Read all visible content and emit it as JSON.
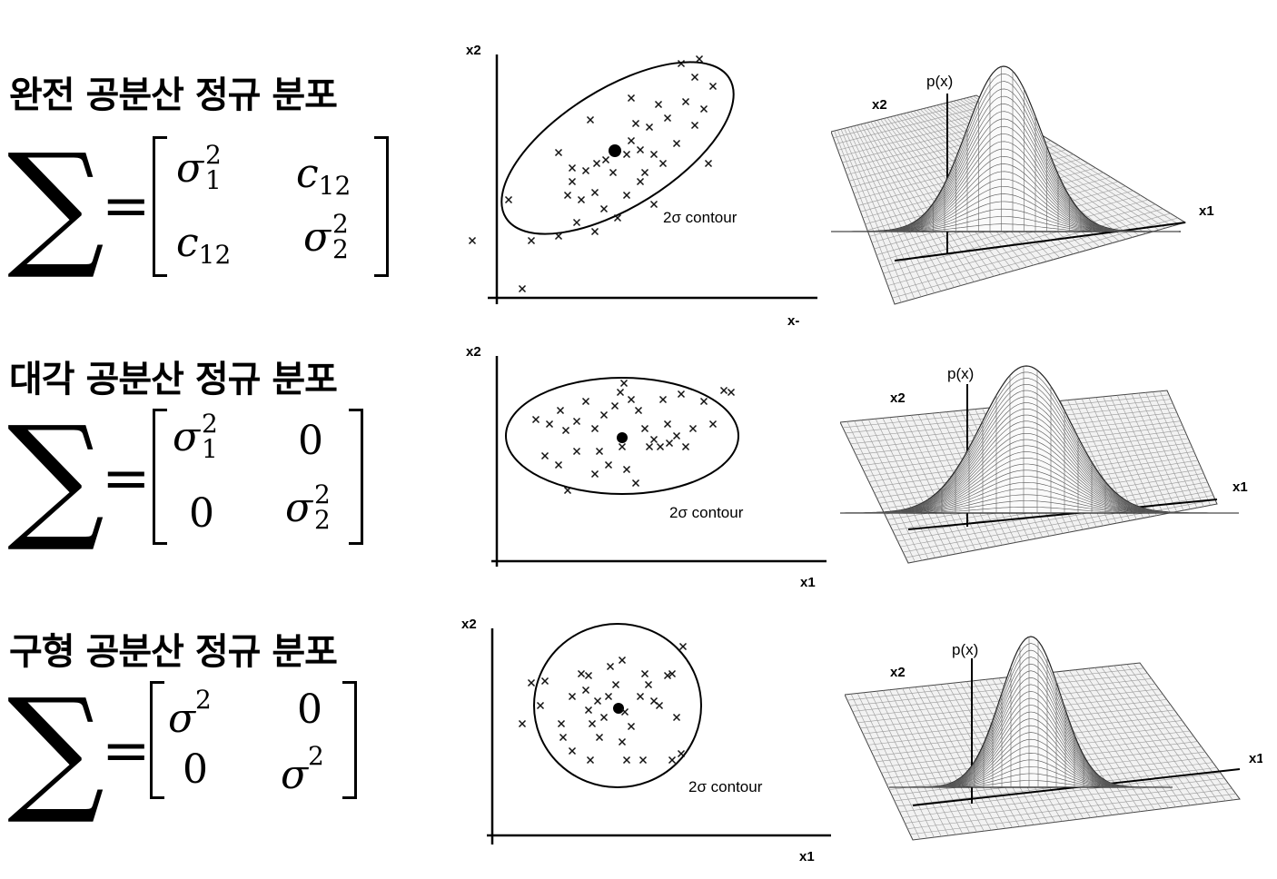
{
  "rows": [
    {
      "title": "완전 공분산 정규 분포",
      "sum_symbol": "∑",
      "equals": "=",
      "m11": "σ",
      "m11_sup": "2",
      "m11_sub": "1",
      "m12": "c",
      "m12_sub": "12",
      "m21": "c",
      "m21_sub": "12",
      "m22": "σ",
      "m22_sup": "2",
      "m22_sub": "2",
      "scatter": {
        "y_axis_label": "x2",
        "x_axis_label": "x-",
        "contour_label": "2σ  contour"
      },
      "surface": {
        "x1_label": "x1",
        "x2_label": "x2",
        "p_label": "p(x)"
      }
    },
    {
      "title": "대각 공분산 정규 분포",
      "sum_symbol": "∑",
      "equals": "=",
      "m11": "σ",
      "m11_sup": "2",
      "m11_sub": "1",
      "m12": "0",
      "m21": "0",
      "m22": "σ",
      "m22_sup": "2",
      "m22_sub": "2",
      "scatter": {
        "y_axis_label": "x2",
        "x_axis_label": "x1",
        "contour_label": "2σ  contour"
      },
      "surface": {
        "x1_label": "x1",
        "x2_label": "x2",
        "p_label": "p(x)"
      }
    },
    {
      "title": "구형 공분산 정규 분포",
      "sum_symbol": "∑",
      "equals": "=",
      "m11": "σ",
      "m11_sup": "2",
      "m12": "0",
      "m21": "0",
      "m22": "σ",
      "m22_sup": "2",
      "scatter": {
        "y_axis_label": "x2",
        "x_axis_label": "x1",
        "contour_label": "2σ  contour"
      },
      "surface": {
        "x1_label": "x1",
        "x2_label": "x2",
        "p_label": "p(x)"
      }
    }
  ]
}
